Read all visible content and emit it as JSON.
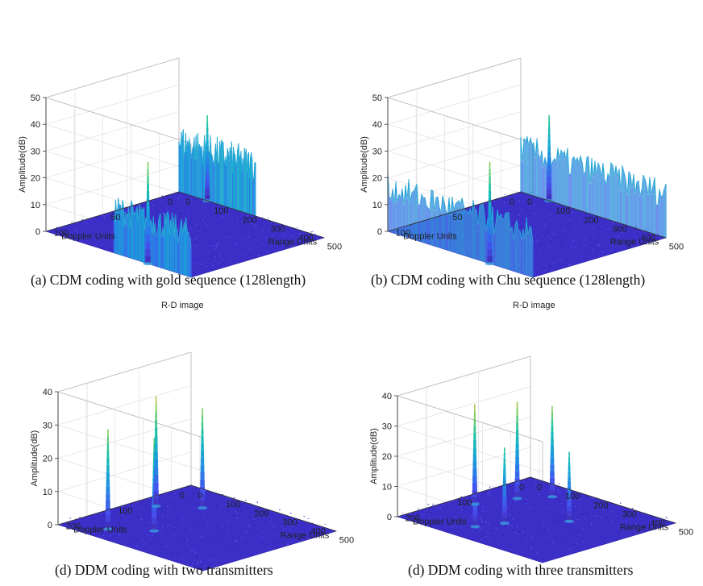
{
  "figure": {
    "panels": [
      {
        "title": "",
        "caption": "(a) CDM coding with gold sequence (128length)"
      },
      {
        "title": "",
        "caption": "(b) CDM coding with Chu sequence (128length)"
      },
      {
        "title": "R-D image",
        "caption": "(d) DDM coding with two transmitters"
      },
      {
        "title": "R-D image",
        "caption": "(d) DDM coding with three transmitters"
      }
    ]
  },
  "chart_data": [
    {
      "type": "surface",
      "title": "",
      "xlabel": "Range Units",
      "ylabel": "Doppler Units",
      "zlabel": "Amplitude(dB)",
      "x_ticks": [
        "0",
        "100",
        "200",
        "300",
        "400",
        "500"
      ],
      "xlim": [
        0,
        512
      ],
      "y_ticks": [
        "0",
        "50",
        "100"
      ],
      "ylim": [
        0,
        128
      ],
      "z_ticks": [
        "0",
        "10",
        "20",
        "30",
        "40",
        "50"
      ],
      "zlim": [
        0,
        50
      ],
      "colormap": "parula",
      "noise_floor": 1,
      "ridges": [
        {
          "doppler": 128,
          "range_start": 240,
          "range_end": 512,
          "level": 20
        },
        {
          "doppler": 0,
          "range_start": 0,
          "range_end": 270,
          "level": 23
        }
      ],
      "peaks": [
        {
          "doppler": 128,
          "range": 360,
          "value": 38
        },
        {
          "doppler": 0,
          "range": 100,
          "value": 32
        }
      ]
    },
    {
      "type": "surface",
      "title": "",
      "xlabel": "Range Units",
      "ylabel": "Doppler Units",
      "zlabel": "Amplitude(dB)",
      "x_ticks": [
        "0",
        "100",
        "200",
        "300",
        "400",
        "500"
      ],
      "xlim": [
        0,
        512
      ],
      "y_ticks": [
        "0",
        "50",
        "100"
      ],
      "ylim": [
        0,
        128
      ],
      "z_ticks": [
        "0",
        "10",
        "20",
        "30",
        "40",
        "50"
      ],
      "zlim": [
        0,
        50
      ],
      "colormap": "parula",
      "noise_floor": 1,
      "ridges": [
        {
          "doppler": 128,
          "range_start": 0,
          "range_end": 512,
          "level": 20
        },
        {
          "doppler": 0,
          "range_start": 0,
          "range_end": 512,
          "level": 20
        }
      ],
      "peaks": [
        {
          "doppler": 128,
          "range": 360,
          "value": 38
        },
        {
          "doppler": 0,
          "range": 100,
          "value": 32
        }
      ]
    },
    {
      "type": "surface",
      "title": "R-D image",
      "xlabel": "Range Units",
      "ylabel": "Doppler Units",
      "zlabel": "Amplitude(dB)",
      "x_ticks": [
        "0",
        "100",
        "200",
        "300",
        "400",
        "500"
      ],
      "xlim": [
        0,
        512
      ],
      "y_ticks": [
        "0",
        "100",
        "200"
      ],
      "ylim": [
        0,
        256
      ],
      "z_ticks": [
        "0",
        "10",
        "20",
        "30",
        "40"
      ],
      "zlim": [
        0,
        40
      ],
      "colormap": "parula",
      "noise_floor": 1,
      "ridges": [],
      "peaks": [
        {
          "doppler": 220,
          "range": 110,
          "value": 30
        },
        {
          "doppler": 180,
          "range": 200,
          "value": 28
        },
        {
          "doppler": 100,
          "range": 60,
          "value": 33
        },
        {
          "doppler": 60,
          "range": 150,
          "value": 30
        }
      ]
    },
    {
      "type": "surface",
      "title": "R-D image",
      "xlabel": "Range Units",
      "ylabel": "Doppler Units",
      "zlabel": "Amplitude(dB)",
      "x_ticks": [
        "0",
        "100",
        "200",
        "300",
        "400",
        "500"
      ],
      "xlim": [
        0,
        512
      ],
      "y_ticks": [
        "0",
        "100",
        "200"
      ],
      "ylim": [
        0,
        256
      ],
      "z_ticks": [
        "0",
        "10",
        "20",
        "30",
        "40"
      ],
      "zlim": [
        0,
        40
      ],
      "colormap": "parula",
      "noise_floor": 1,
      "ridges": [],
      "peaks": [
        {
          "doppler": 210,
          "range": 190,
          "value": 26
        },
        {
          "doppler": 170,
          "range": 220,
          "value": 25
        },
        {
          "doppler": 140,
          "range": 60,
          "value": 33
        },
        {
          "doppler": 100,
          "range": 320,
          "value": 23
        },
        {
          "doppler": 80,
          "range": 100,
          "value": 32
        },
        {
          "doppler": 40,
          "range": 150,
          "value": 30
        }
      ]
    }
  ]
}
